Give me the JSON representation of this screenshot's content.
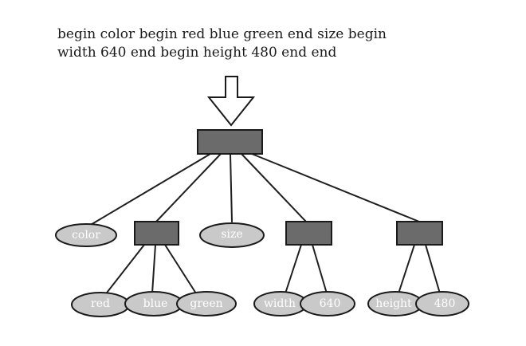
{
  "header": {
    "line1": "begin color begin red blue green end size begin",
    "line2": "width 640 end begin height 480 end end"
  },
  "tree": {
    "leaves": {
      "color": "color",
      "size": "size",
      "red": "red",
      "blue": "blue",
      "green": "green",
      "width": "width",
      "640": "640",
      "height": "height",
      "480": "480"
    }
  },
  "colors": {
    "box_fill": "#6b6b6b",
    "oval_fill": "#c9c9c9",
    "stroke": "#1a1a1a",
    "label": "#ffffff"
  }
}
